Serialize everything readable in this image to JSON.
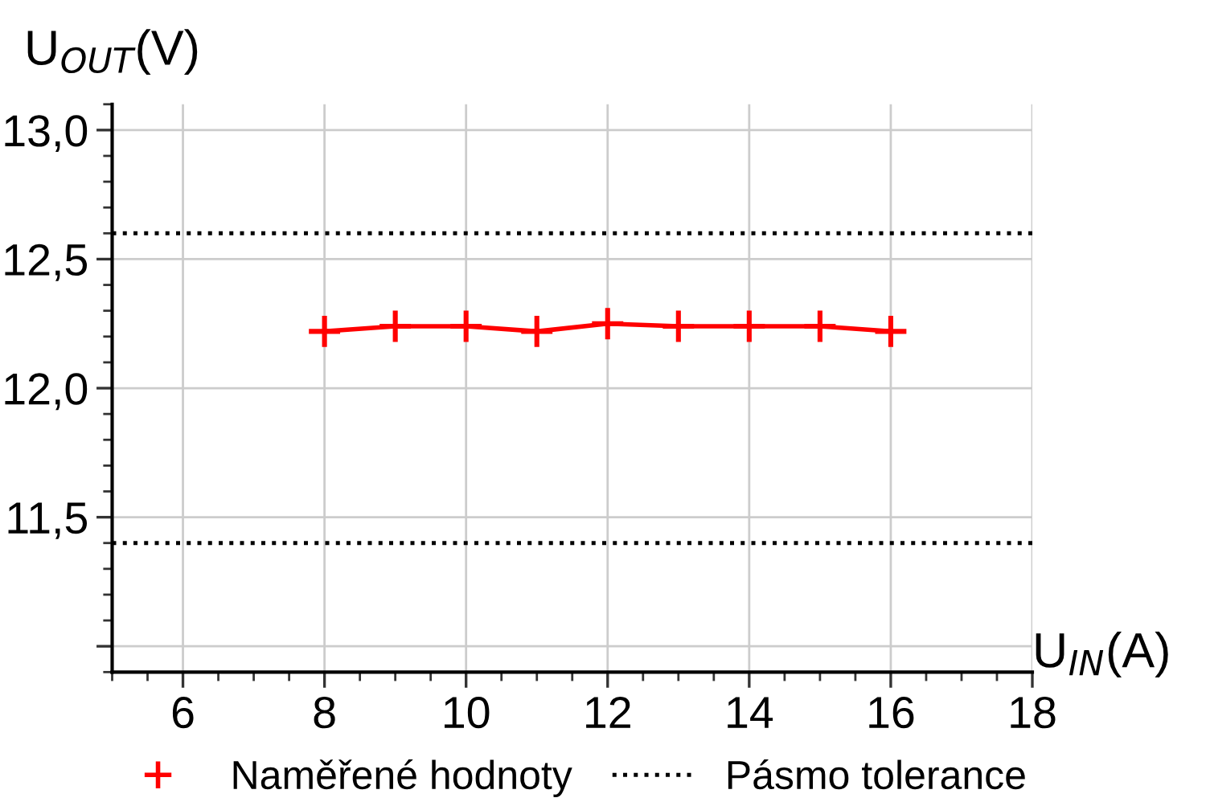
{
  "chart_data": {
    "type": "line",
    "x": [
      8,
      9,
      10,
      11,
      12,
      13,
      14,
      15,
      16
    ],
    "series": [
      {
        "name": "Naměřené hodnoty",
        "color": "#ff0000",
        "values": [
          12.22,
          12.24,
          12.24,
          12.22,
          12.25,
          12.24,
          12.24,
          12.24,
          12.22
        ]
      }
    ],
    "xlabel": "U$_{IN}$(A)",
    "ylabel": "U$_{OUT}$(V)",
    "xlim": [
      5,
      18
    ],
    "xticks": [
      6,
      8,
      10,
      12,
      14,
      16,
      18
    ],
    "ylim": [
      10.9,
      13.1
    ],
    "yticks": [
      {
        "value": 11.0,
        "label": null
      },
      {
        "value": 11.5,
        "label": "11,5"
      },
      {
        "value": 12.0,
        "label": "12,0"
      },
      {
        "value": 12.5,
        "label": "12,5"
      },
      {
        "value": 13.0,
        "label": "13,0"
      }
    ],
    "ref_lines": [
      {
        "axis": "y",
        "value": 12.6,
        "label": "Pásmo tolerance",
        "color": "#000000",
        "line_style": "dotted"
      },
      {
        "axis": "y",
        "value": 11.4,
        "color": "#000000",
        "line_style": "dotted"
      }
    ],
    "grid": true,
    "legend": "bottom",
    "marker": "cross",
    "line_style": "solid"
  }
}
